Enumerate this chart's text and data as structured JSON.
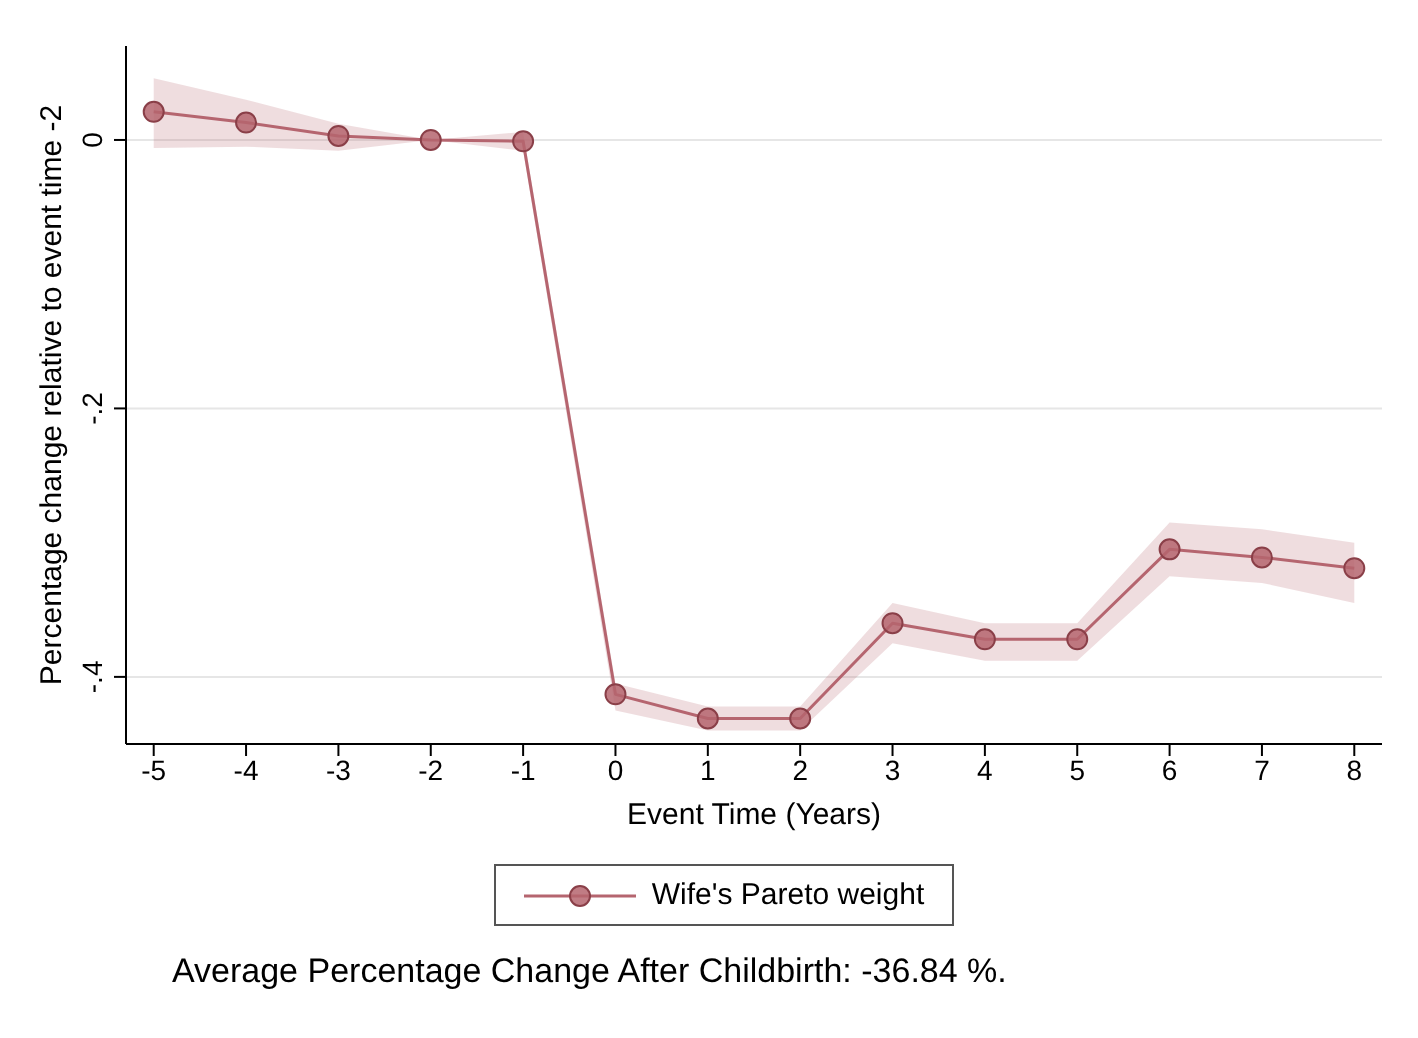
{
  "chart_data": {
    "type": "line",
    "xlabel": "Event Time (Years)",
    "ylabel": "Percentage change relative to event time -2",
    "x": [
      -5,
      -4,
      -3,
      -2,
      -1,
      0,
      1,
      2,
      3,
      4,
      5,
      6,
      7,
      8
    ],
    "series": [
      {
        "name": "Wife's Pareto weight",
        "color": "#b5656f",
        "values": [
          0.021,
          0.013,
          0.003,
          0,
          -0.001,
          -0.413,
          -0.431,
          -0.431,
          -0.36,
          -0.372,
          -0.372,
          -0.305,
          -0.311,
          -0.319
        ],
        "lower": [
          -0.006,
          -0.005,
          -0.008,
          0,
          -0.008,
          -0.425,
          -0.44,
          -0.44,
          -0.375,
          -0.388,
          -0.388,
          -0.325,
          -0.33,
          -0.345
        ],
        "upper": [
          0.046,
          0.03,
          0.012,
          0,
          0.006,
          -0.405,
          -0.422,
          -0.422,
          -0.345,
          -0.36,
          -0.36,
          -0.285,
          -0.29,
          -0.3
        ]
      }
    ],
    "xlim": [
      -5.3,
      8.3
    ],
    "xticks": [
      -5,
      -4,
      -3,
      -2,
      -1,
      0,
      1,
      2,
      3,
      4,
      5,
      6,
      7,
      8
    ],
    "ylim": [
      -0.45,
      0.07
    ],
    "yticks": [
      {
        "value": 0,
        "label": "0"
      },
      {
        "value": -0.2,
        "label": "-.2"
      },
      {
        "value": -0.4,
        "label": "-.4"
      }
    ],
    "grid": "y",
    "legend": "bottom",
    "marker": "circle",
    "line_style": "solid",
    "annotations": [
      "Average Percentage Change After Childbirth: -36.84 %."
    ]
  }
}
